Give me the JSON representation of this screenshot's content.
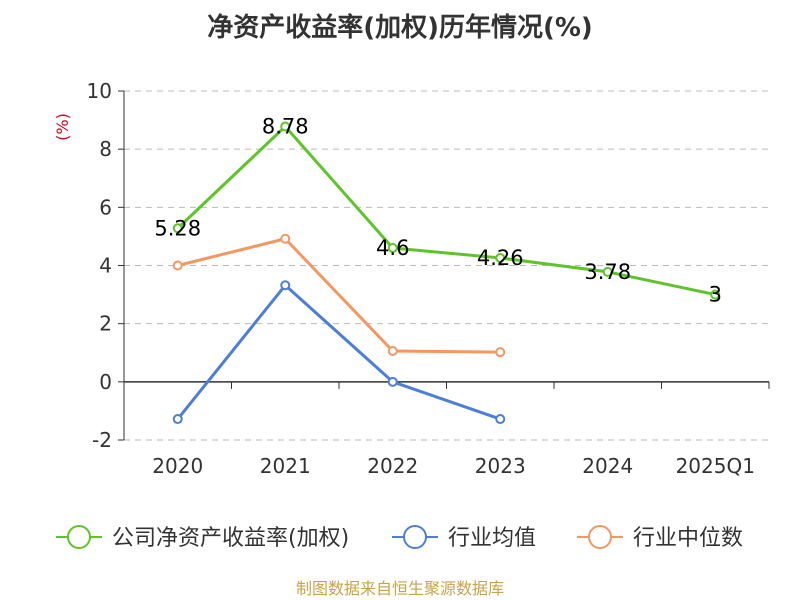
{
  "title": "净资产收益率(加权)历年情况(%)",
  "source": "制图数据来自恒生聚源数据库",
  "chart_data": {
    "type": "line",
    "title": "净资产收益率(加权)历年情况(%)",
    "ylabel": "(%)",
    "xlabel": "",
    "categories": [
      "2020",
      "2021",
      "2022",
      "2023",
      "2024",
      "2025Q1"
    ],
    "ylim": [
      -2,
      10
    ],
    "yticks": [
      -2,
      0,
      2,
      4,
      6,
      8,
      10
    ],
    "grid": true,
    "legend_position": "bottom",
    "series": [
      {
        "name": "公司净资产收益率(加权)",
        "color": "#5ec42a",
        "values": [
          5.28,
          8.78,
          4.6,
          4.26,
          3.78,
          3
        ],
        "labels": [
          "5.28",
          "8.78",
          "4.6",
          "4.26",
          "3.78",
          "3"
        ]
      },
      {
        "name": "行业均值",
        "color": "#4d7fd6",
        "values": [
          -1.28,
          3.32,
          0.0,
          -1.28,
          null,
          null
        ]
      },
      {
        "name": "行业中位数",
        "color": "#f39862",
        "values": [
          4.0,
          4.92,
          1.06,
          1.02,
          null,
          null
        ]
      }
    ]
  }
}
